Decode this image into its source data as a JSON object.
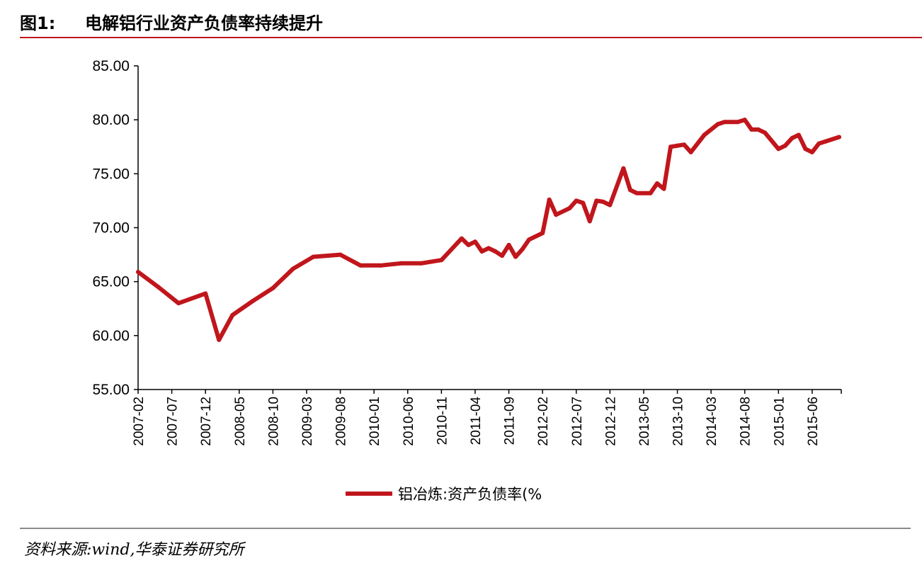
{
  "header": {
    "fig_label": "图1:",
    "title": "电解铝行业资产负债率持续提升"
  },
  "footer": {
    "source": "资料来源:wind,华泰证券研究所"
  },
  "colors": {
    "series": "#c0161c",
    "rule": "#c0161c",
    "axis": "#000000"
  },
  "chart_data": {
    "type": "line",
    "title": "",
    "xlabel": "",
    "ylabel": "",
    "ylim": [
      55,
      85
    ],
    "yticks": [
      "55.00",
      "60.00",
      "65.00",
      "70.00",
      "75.00",
      "80.00",
      "85.00"
    ],
    "xticks": [
      "2007-02",
      "2007-07",
      "2007-12",
      "2008-05",
      "2008-10",
      "2009-03",
      "2009-08",
      "2010-01",
      "2010-06",
      "2010-11",
      "2011-04",
      "2011-09",
      "2012-02",
      "2012-07",
      "2012-12",
      "2013-05",
      "2013-10",
      "2014-03",
      "2014-08",
      "2015-01",
      "2015-06"
    ],
    "grid": false,
    "legend": "bottom",
    "series": [
      {
        "name": "铝冶炼:资产负债率(%",
        "x": [
          "2007-02",
          "2007-05",
          "2007-08",
          "2007-12",
          "2008-02",
          "2008-04",
          "2008-07",
          "2008-10",
          "2009-01",
          "2009-04",
          "2009-08",
          "2009-11",
          "2010-02",
          "2010-05",
          "2010-08",
          "2010-11",
          "2011-02",
          "2011-03",
          "2011-04",
          "2011-05",
          "2011-06",
          "2011-07",
          "2011-08",
          "2011-09",
          "2011-10",
          "2011-11",
          "2011-12",
          "2012-02",
          "2012-03",
          "2012-04",
          "2012-06",
          "2012-07",
          "2012-08",
          "2012-09",
          "2012-10",
          "2012-11",
          "2012-12",
          "2013-02",
          "2013-03",
          "2013-04",
          "2013-06",
          "2013-07",
          "2013-08",
          "2013-09",
          "2013-10",
          "2013-11",
          "2013-12",
          "2014-02",
          "2014-04",
          "2014-05",
          "2014-06",
          "2014-07",
          "2014-08",
          "2014-09",
          "2014-10",
          "2014-11",
          "2015-01",
          "2015-02",
          "2015-03",
          "2015-04",
          "2015-05",
          "2015-06",
          "2015-07",
          "2015-08",
          "2015-10"
        ],
        "values": [
          65.9,
          64.5,
          63.0,
          63.9,
          59.6,
          61.9,
          63.2,
          64.4,
          66.2,
          67.3,
          67.5,
          66.5,
          66.5,
          66.7,
          66.7,
          67.0,
          69.0,
          68.4,
          68.7,
          67.8,
          68.1,
          67.8,
          67.4,
          68.4,
          67.3,
          68.0,
          68.9,
          69.5,
          72.6,
          71.2,
          71.8,
          72.5,
          72.3,
          70.6,
          72.5,
          72.4,
          72.1,
          75.5,
          73.5,
          73.2,
          73.2,
          74.1,
          73.6,
          77.5,
          77.6,
          77.7,
          77.0,
          78.6,
          79.6,
          79.8,
          79.8,
          79.8,
          80.0,
          79.1,
          79.1,
          78.8,
          77.3,
          77.6,
          78.3,
          78.6,
          77.3,
          77.0,
          77.8,
          78.0,
          78.4
        ]
      }
    ]
  }
}
